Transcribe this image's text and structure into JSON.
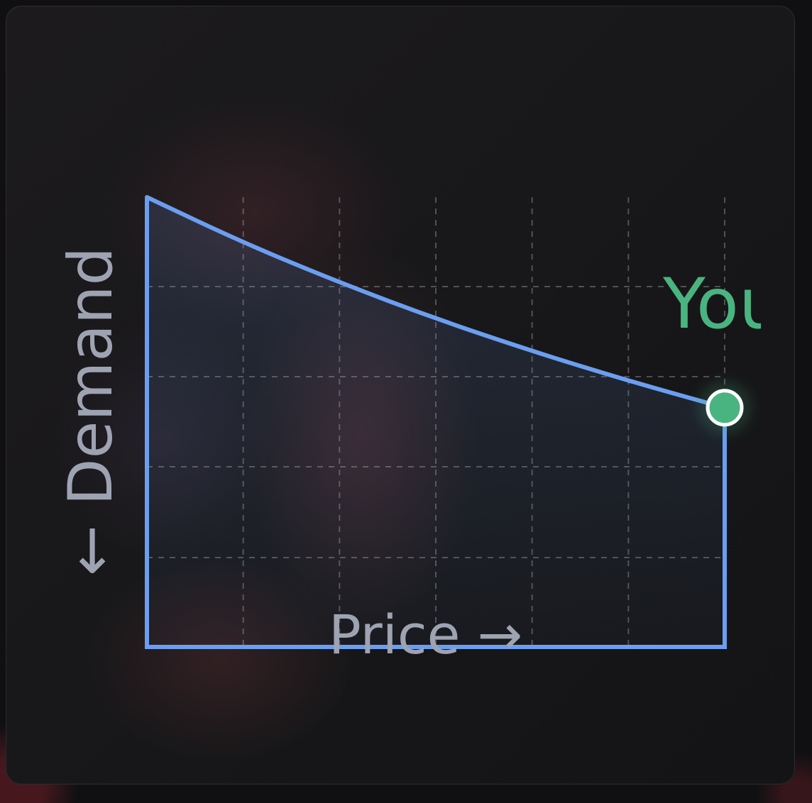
{
  "chart_data": {
    "type": "area",
    "xlabel": "Price →",
    "ylabel": "← Demand",
    "grid": true,
    "x": [
      0,
      1,
      2,
      3,
      4,
      5,
      6
    ],
    "y": [
      4.85,
      4.36,
      3.93,
      3.54,
      3.19,
      2.87,
      2.58
    ],
    "xlim": [
      0,
      6
    ],
    "ylim": [
      0,
      4.85
    ],
    "series": [
      {
        "values": [
          4.85,
          4.36,
          3.93,
          3.54,
          3.19,
          2.87,
          2.58
        ],
        "color": "#6b9ef0"
      }
    ],
    "marker": {
      "label": "You",
      "x": 6,
      "y": 2.58,
      "color": "#4ab480"
    }
  }
}
